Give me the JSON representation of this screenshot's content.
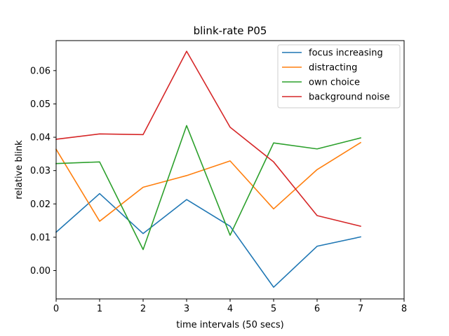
{
  "chart_data": {
    "type": "line",
    "title": "blink-rate P05",
    "xlabel": "time intervals (50 secs)",
    "ylabel": "relative blink",
    "xlim": [
      0,
      8
    ],
    "ylim": [
      -0.0085,
      0.069
    ],
    "xticks": [
      0,
      1,
      2,
      3,
      4,
      5,
      6,
      7,
      8
    ],
    "yticks": [
      0.0,
      0.01,
      0.02,
      0.03,
      0.04,
      0.05,
      0.06
    ],
    "ytick_labels": [
      "0.00",
      "0.01",
      "0.02",
      "0.03",
      "0.04",
      "0.05",
      "0.06"
    ],
    "grid": false,
    "legend_position": "upper right",
    "x": [
      0,
      1,
      2,
      3,
      4,
      5,
      6,
      7
    ],
    "series": [
      {
        "name": "focus increasing",
        "color": "#1f77b4",
        "values": [
          0.0115,
          0.0231,
          0.0111,
          0.0213,
          0.0133,
          -0.005,
          0.0073,
          0.0101
        ]
      },
      {
        "name": "distracting",
        "color": "#ff7f0e",
        "values": [
          0.0364,
          0.0148,
          0.025,
          0.0285,
          0.0329,
          0.0185,
          0.0303,
          0.0384
        ]
      },
      {
        "name": "own choice",
        "color": "#2ca02c",
        "values": [
          0.0321,
          0.0326,
          0.0063,
          0.0435,
          0.0106,
          0.0383,
          0.0365,
          0.0398
        ]
      },
      {
        "name": "background noise",
        "color": "#d62728",
        "values": [
          0.0394,
          0.041,
          0.0408,
          0.0658,
          0.043,
          0.0326,
          0.0165,
          0.0133
        ]
      }
    ]
  }
}
